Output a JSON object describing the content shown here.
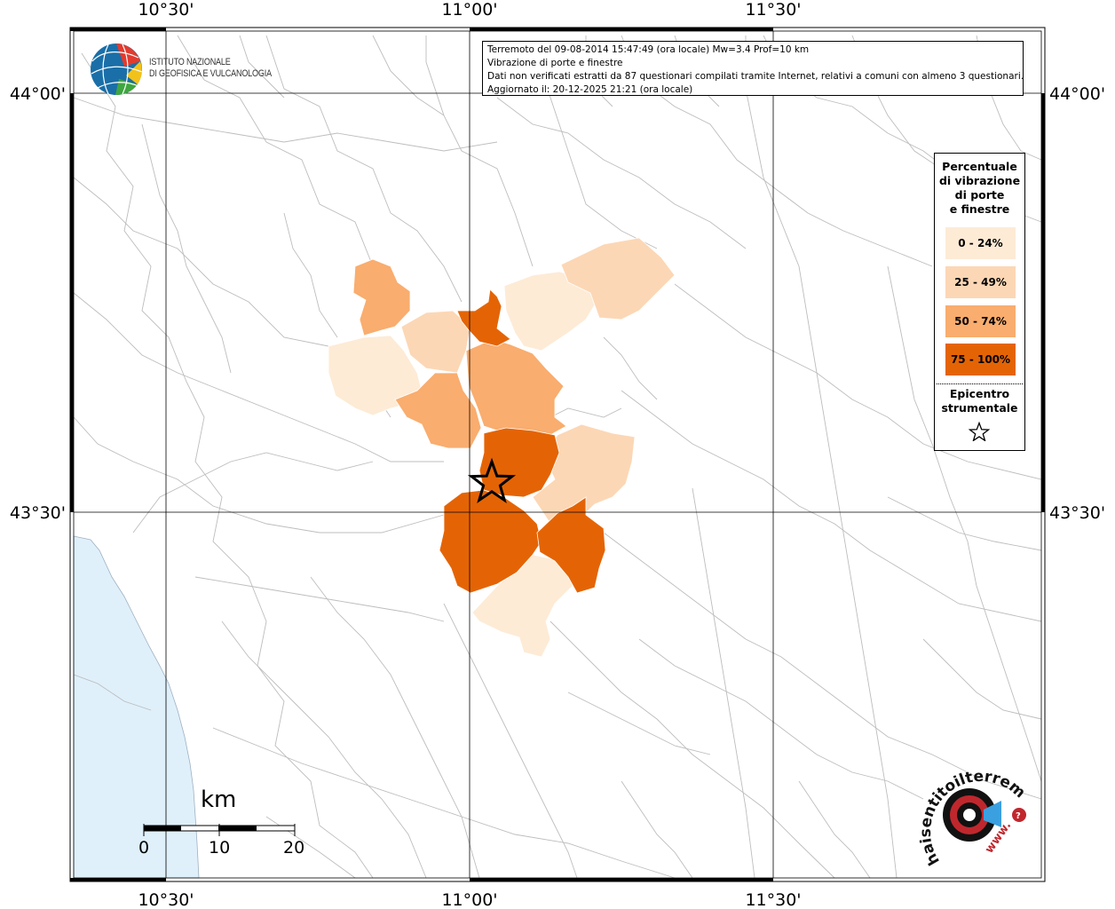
{
  "header": {
    "line1": "Terremoto del 09-08-2014 15:47:49 (ora locale) Mw=3.4 Prof=10 km",
    "line2": "Vibrazione di porte e finestre",
    "line3": "Dati non verificati estratti da 87 questionari compilati tramite Internet, relativi a comuni con almeno 3 questionari.",
    "line4": "Aggiornato il: 20-12-2025 21:21 (ora locale)"
  },
  "ingv": {
    "line1": "ISTITUTO NAZIONALE",
    "line2": "DI GEOFISICA E VULCANOLOGIA",
    "icon": "ingv-globe-icon"
  },
  "axes": {
    "x_labels": [
      "10°30'",
      "11°00'",
      "11°30'"
    ],
    "y_labels": [
      "44°00'",
      "43°30'"
    ]
  },
  "legend": {
    "title_lines": [
      "Percentuale",
      "di vibrazione",
      "di porte",
      "e finestre"
    ],
    "items": [
      {
        "label": "0 - 24%",
        "color": "#fdebd6"
      },
      {
        "label": "25 - 49%",
        "color": "#fcd7b5"
      },
      {
        "label": "50 - 74%",
        "color": "#f9ad6e"
      },
      {
        "label": "75 - 100%",
        "color": "#e46405"
      }
    ],
    "epicenter_lines": [
      "Epicentro",
      "strumentale"
    ]
  },
  "scale_bar": {
    "unit": "km",
    "labels": [
      "0",
      "10",
      "20"
    ]
  },
  "colors": {
    "sea": "#dff0fb",
    "borders": "#bbbbbb",
    "grid": "#000000"
  },
  "badge": {
    "arc_text": "haisentitoilterremoto.it",
    "url_text": "www.",
    "icon": "hai-sentito-il-terremoto-logo-icon"
  }
}
